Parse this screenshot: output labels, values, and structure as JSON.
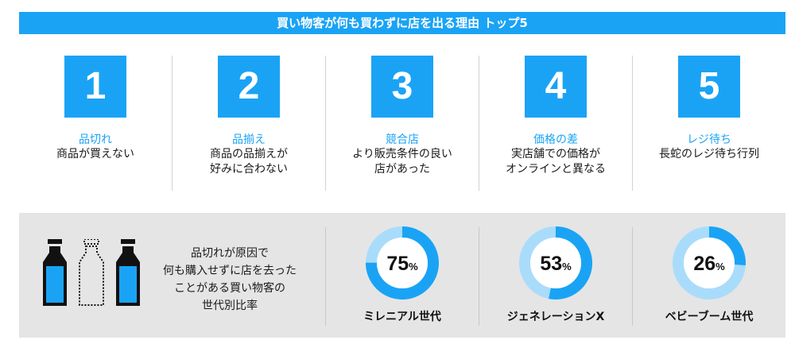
{
  "title": "買い物客が何も買わずに店を出る理由 トップ5",
  "reasons": [
    {
      "num": "1",
      "title": "品切れ",
      "desc1": "商品が買えない",
      "desc2": ""
    },
    {
      "num": "2",
      "title": "品揃え",
      "desc1": "商品の品揃えが",
      "desc2": "好みに合わない"
    },
    {
      "num": "3",
      "title": "競合店",
      "desc1": "より販売条件の良い",
      "desc2": "店があった"
    },
    {
      "num": "4",
      "title": "価格の差",
      "desc1": "実店舗での価格が",
      "desc2": "オンラインと異なる"
    },
    {
      "num": "5",
      "title": "レジ待ち",
      "desc1": "長蛇のレジ待ち行列",
      "desc2": ""
    }
  ],
  "stat_description": [
    "品切れが原因で",
    "何も購入せずに店を去った",
    "ことがある買い物客の",
    "世代別比率"
  ],
  "percent_sign": "%",
  "colors": {
    "accent": "#1aa3f5",
    "ring_light": "#a9dcfb",
    "panel_bg": "#e5e5e5"
  },
  "chart_data": {
    "type": "pie",
    "title": "",
    "categories": [
      "ミレニアル世代",
      "ジェネレーションX",
      "ベビーブーム世代"
    ],
    "values": [
      75,
      53,
      26
    ],
    "unit": "%",
    "labels": [
      "75",
      "53",
      "26"
    ]
  }
}
